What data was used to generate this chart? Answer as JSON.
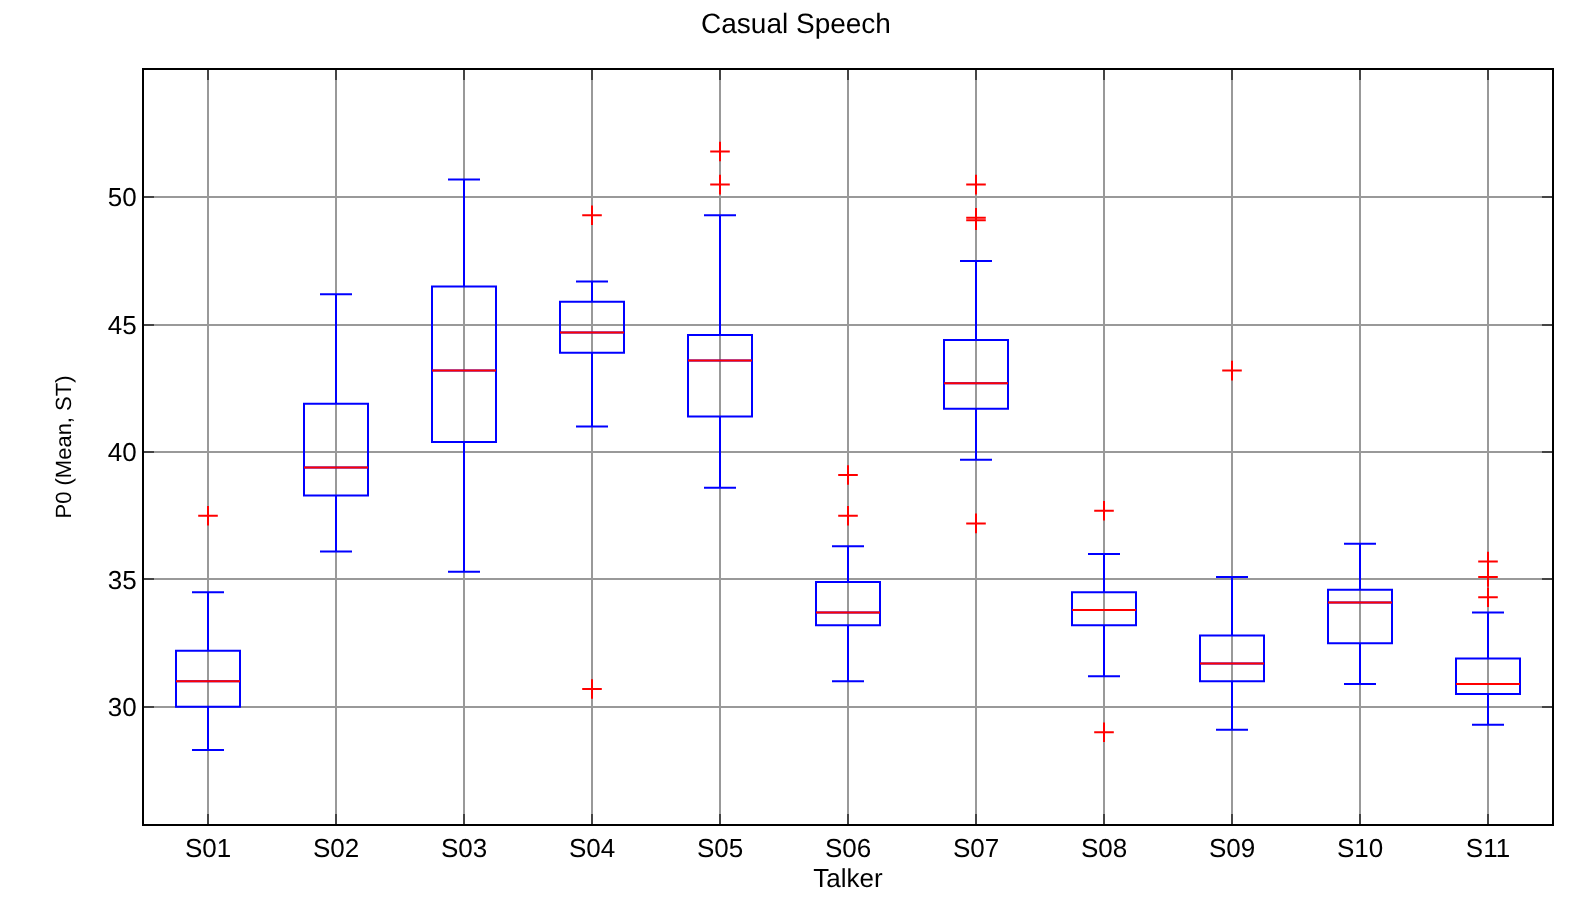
{
  "chart_data": {
    "type": "box",
    "title": "Casual Speech",
    "xlabel": "Talker",
    "ylabel": "P0 (Mean, ST)",
    "categories": [
      "S01",
      "S02",
      "S03",
      "S04",
      "S05",
      "S06",
      "S07",
      "S08",
      "S09",
      "S10",
      "S11"
    ],
    "ylim": [
      25.4,
      55
    ],
    "yticks": [
      30,
      35,
      40,
      45,
      50
    ],
    "grid": true,
    "series": [
      {
        "color": "#0000ff",
        "boxes": [
          {
            "low": 28.3,
            "q1": 30.0,
            "median": 31.0,
            "q3": 32.2,
            "high": 34.5,
            "outliers": [
              37.5
            ]
          },
          {
            "low": 36.1,
            "q1": 38.3,
            "median": 39.4,
            "q3": 41.9,
            "high": 46.2
          },
          {
            "low": 35.3,
            "q1": 40.4,
            "median": 43.2,
            "q3": 46.5,
            "high": 50.7
          },
          {
            "low": 41.0,
            "q1": 43.9,
            "median": 44.7,
            "q3": 45.9,
            "high": 46.7,
            "outliers": [
              49.3,
              30.7
            ]
          },
          {
            "low": 38.6,
            "q1": 41.4,
            "median": 43.6,
            "q3": 44.6,
            "high": 49.3,
            "outliers": [
              51.8,
              50.5
            ]
          },
          {
            "low": 31.0,
            "q1": 33.2,
            "median": 33.7,
            "q3": 34.9,
            "high": 36.3,
            "outliers": [
              39.1,
              37.5
            ]
          },
          {
            "low": 39.7,
            "q1": 41.7,
            "median": 42.7,
            "q3": 44.4,
            "high": 47.5,
            "outliers": [
              50.5,
              49.2,
              49.1,
              37.2
            ]
          },
          {
            "low": 31.2,
            "q1": 33.2,
            "median": 33.8,
            "q3": 34.5,
            "high": 36.0,
            "outliers": [
              37.7,
              29.0
            ]
          },
          {
            "low": 29.1,
            "q1": 31.0,
            "median": 31.7,
            "q3": 32.8,
            "high": 35.1,
            "outliers": [
              43.2
            ]
          },
          {
            "low": 30.9,
            "q1": 32.5,
            "median": 34.1,
            "q3": 34.6,
            "high": 36.4
          },
          {
            "low": 29.3,
            "q1": 30.5,
            "median": 30.9,
            "q3": 31.9,
            "high": 33.7,
            "outliers": [
              35.7,
              35.1,
              34.3
            ]
          }
        ]
      }
    ]
  }
}
